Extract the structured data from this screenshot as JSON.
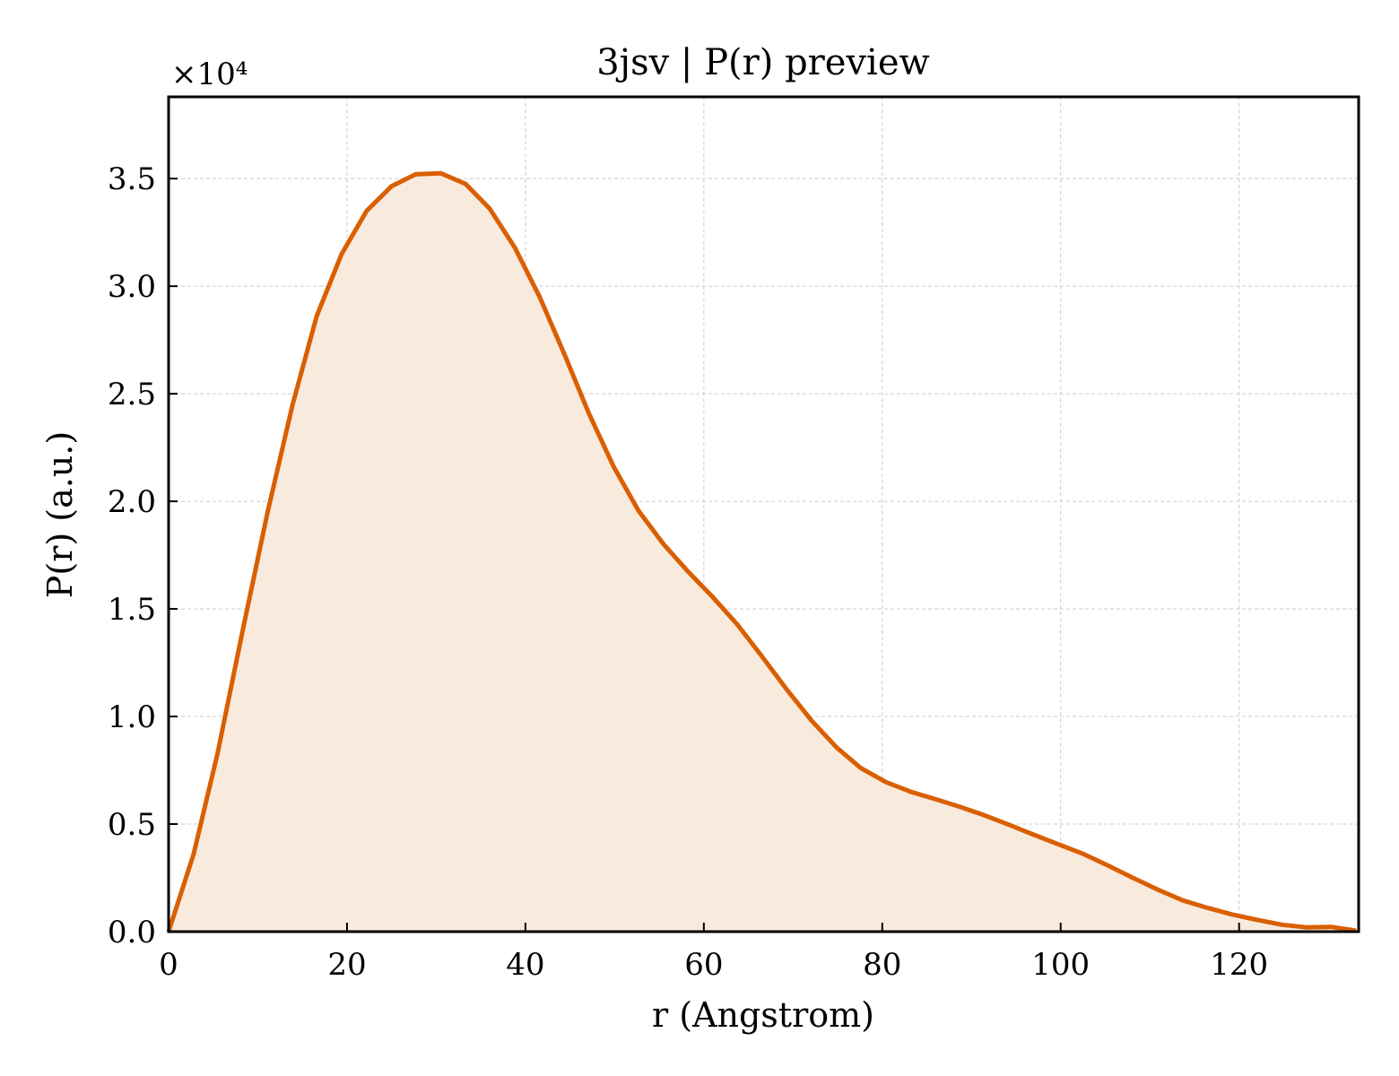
{
  "chart_data": {
    "type": "area",
    "title": "3jsv | P(r) preview",
    "xlabel": "r (Angstrom)",
    "ylabel": "P(r) (a.u.)",
    "y_multiplier_label": "×10⁴",
    "xlim": [
      0,
      133.4
    ],
    "ylim": [
      0,
      3.88
    ],
    "x_ticks": [
      0,
      20,
      40,
      60,
      80,
      100,
      120
    ],
    "x_tick_labels": [
      "0",
      "20",
      "40",
      "60",
      "80",
      "100",
      "120"
    ],
    "y_ticks": [
      0,
      0.5,
      1.0,
      1.5,
      2.0,
      2.5,
      3.0,
      3.5
    ],
    "y_tick_labels": [
      "0.0",
      "0.5",
      "1.0",
      "1.5",
      "2.0",
      "2.5",
      "3.0",
      "3.5"
    ],
    "grid": true,
    "colors": {
      "line": "#d95f02",
      "fill": "#f9eade",
      "grid": "#cccccc"
    },
    "series": [
      {
        "x": [
          0,
          2.8,
          5.5,
          8.3,
          11.1,
          13.9,
          16.6,
          19.4,
          22.2,
          25.0,
          27.7,
          30.5,
          33.3,
          36.0,
          38.8,
          41.6,
          44.4,
          47.1,
          49.9,
          52.7,
          55.5,
          58.2,
          61.0,
          63.8,
          66.5,
          69.3,
          72.1,
          74.9,
          77.6,
          80.4,
          83.2,
          86.0,
          88.7,
          91.5,
          94.3,
          97.0,
          99.8,
          102.6,
          105.4,
          108.1,
          110.9,
          113.7,
          116.5,
          119.2,
          122.0,
          124.8,
          127.5,
          130.3,
          133.1
        ],
        "values": [
          0,
          0.36,
          0.83,
          1.4,
          1.95,
          2.45,
          2.86,
          3.15,
          3.35,
          3.465,
          3.52,
          3.525,
          3.475,
          3.36,
          3.18,
          2.95,
          2.68,
          2.41,
          2.16,
          1.955,
          1.8,
          1.675,
          1.555,
          1.425,
          1.28,
          1.125,
          0.98,
          0.855,
          0.76,
          0.695,
          0.65,
          0.615,
          0.58,
          0.54,
          0.495,
          0.45,
          0.405,
          0.36,
          0.305,
          0.25,
          0.195,
          0.145,
          0.11,
          0.08,
          0.055,
          0.032,
          0.02,
          0.022,
          0.005
        ]
      }
    ]
  }
}
